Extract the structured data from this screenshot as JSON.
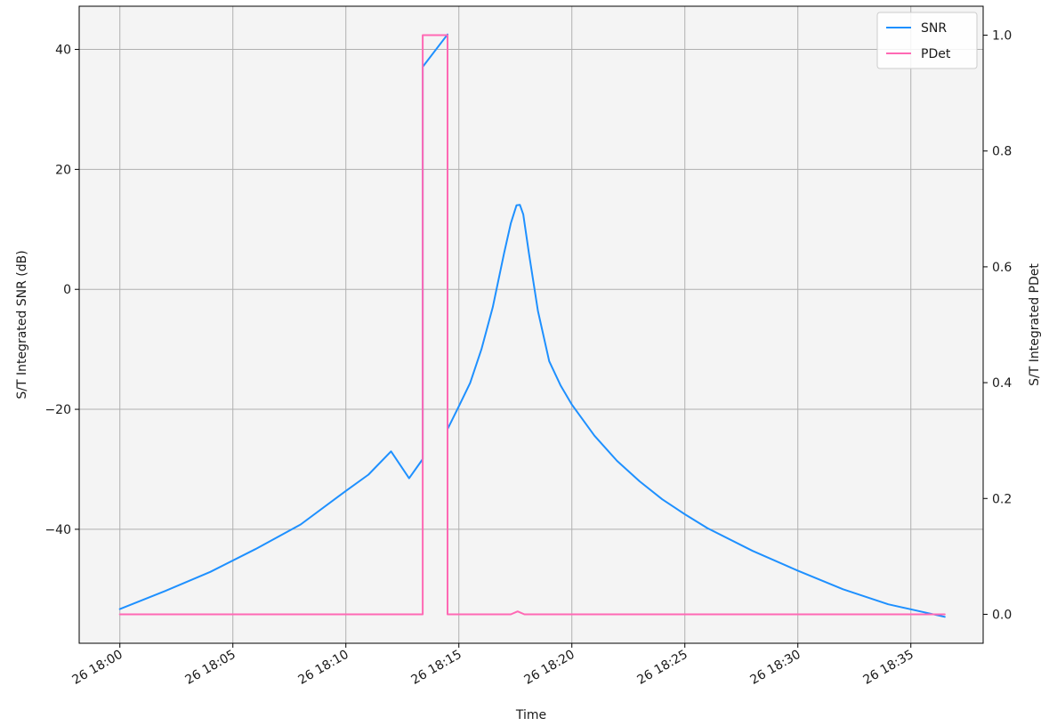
{
  "chart_data": {
    "type": "line",
    "title": "",
    "xlabel": "Time",
    "ylabel_left": "S/T Integrated SNR (dB)",
    "ylabel_right": "S/T Integrated PDet",
    "x_unit": "minutes after 26 18:00",
    "xlim": [
      -1.8,
      38.2
    ],
    "xticks": [
      0,
      5,
      10,
      15,
      20,
      25,
      30,
      35
    ],
    "xtick_labels": [
      "26 18:00",
      "26 18:05",
      "26 18:10",
      "26 18:15",
      "26 18:20",
      "26 18:25",
      "26 18:30",
      "26 18:35"
    ],
    "ylim_left": [
      -59,
      47.2
    ],
    "yticks_left": [
      -40,
      -20,
      0,
      20,
      40
    ],
    "ytick_labels_left": [
      "−40",
      "−20",
      "0",
      "20",
      "40"
    ],
    "ylim_right": [
      -0.05,
      1.05
    ],
    "yticks_right": [
      0.0,
      0.2,
      0.4,
      0.6,
      0.8,
      1.0
    ],
    "ytick_labels_right": [
      "0.0",
      "0.2",
      "0.4",
      "0.6",
      "0.8",
      "1.0"
    ],
    "grid": true,
    "legend_position": "top-right",
    "series": [
      {
        "name": "SNR",
        "axis": "left",
        "color": "#1e90ff",
        "x": [
          0,
          2,
          4,
          6,
          8,
          10,
          11,
          12,
          12.8,
          13.4,
          13.4,
          14.5,
          14.5,
          15,
          15.5,
          16,
          16.5,
          17,
          17.3,
          17.55,
          17.7,
          17.85,
          18.1,
          18.5,
          19,
          19.5,
          20,
          21,
          22,
          23,
          24,
          25,
          26,
          28,
          30,
          32,
          34,
          36.5
        ],
        "y": [
          -53.3,
          -50.3,
          -47.1,
          -43.3,
          -39.2,
          -33.6,
          -30.9,
          -27.0,
          -31.5,
          -28.3,
          37.1,
          42.5,
          -23.3,
          -19.5,
          -15.6,
          -10.0,
          -3.0,
          6.0,
          11.0,
          14.0,
          14.1,
          12.5,
          6.0,
          -3.6,
          -12.0,
          -16.0,
          -19.2,
          -24.4,
          -28.6,
          -32.0,
          -35.0,
          -37.5,
          -39.8,
          -43.6,
          -46.9,
          -50.0,
          -52.5,
          -54.6
        ]
      },
      {
        "name": "PDet",
        "axis": "right",
        "color": "#ff69b4",
        "x": [
          0,
          13.4,
          13.4,
          14.5,
          14.5,
          17.3,
          17.6,
          17.9,
          36.5
        ],
        "y": [
          0.0,
          0.0,
          1.0,
          1.0,
          0.0,
          0.0,
          0.005,
          0.0,
          0.0
        ]
      }
    ]
  }
}
